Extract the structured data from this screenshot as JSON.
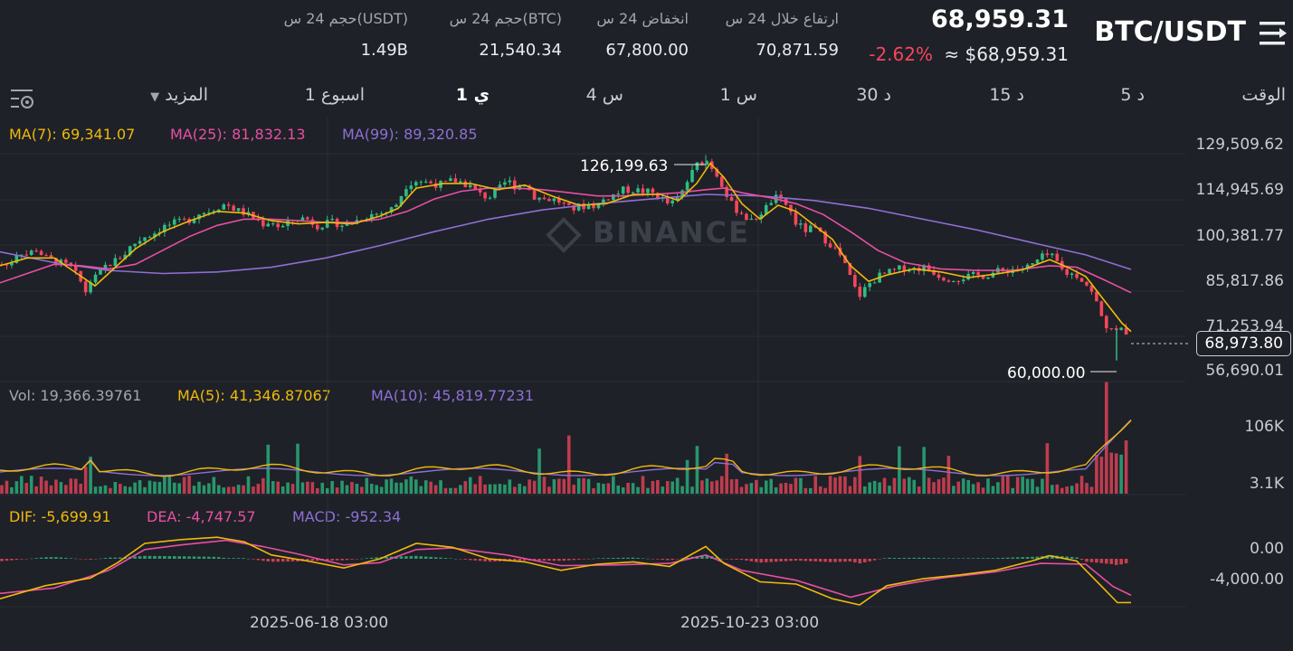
{
  "header": {
    "pair": "BTC/USDT",
    "price": "68,959.31",
    "price_usd": "≈ $68,959.31",
    "change": "-2.62%",
    "stats": [
      {
        "label": "ارتفاع خلال 24 س",
        "value": "70,871.59"
      },
      {
        "label": "انخفاض 24 س",
        "value": "67,800.00"
      },
      {
        "label": "حجم 24 س(BTC)",
        "value": "21,540.34"
      },
      {
        "label": "حجم 24 س(USDT)",
        "value": "1.49B"
      }
    ]
  },
  "timeframes": {
    "label": "الوقت",
    "items": [
      "5 د",
      "15 د",
      "30 د",
      "1 س",
      "4 س",
      "1 ي",
      "1 اسبوع"
    ],
    "active": "1 ي",
    "more": "المزيد"
  },
  "icons": {
    "menu": "menu-icon",
    "settings": "chart-settings-icon",
    "dropdown": "caret-down-icon"
  },
  "main_chart": {
    "ma7": "MA(7): 69,341.07",
    "ma25": "MA(25): 81,832.13",
    "ma99": "MA(99): 89,320.85",
    "yaxis": [
      "129,509.62",
      "114,945.69",
      "100,381.77",
      "85,817.86",
      "71,253.94",
      "56,690.01"
    ],
    "high_label": "126,199.63",
    "low_label": "60,000.00",
    "last_price": "68,973.80",
    "watermark": "BINANCE"
  },
  "volume_chart": {
    "vol": "Vol: 19,366.39761",
    "ma5": "MA(5): 41,346.87067",
    "ma10": "MA(10): 45,819.77231",
    "yaxis": [
      "106K",
      "3.1K"
    ]
  },
  "macd_chart": {
    "dif": "DIF: -5,699.91",
    "dea": "DEA: -4,747.57",
    "macd": "MACD: -952.34",
    "yaxis": [
      "0.00",
      "-4,000.00"
    ]
  },
  "xaxis": [
    "2025-06-18 03:00",
    "2025-10-23 03:00"
  ],
  "colors": {
    "up": "#2ebd85",
    "down": "#f6465d",
    "ma7": "#f0b90b",
    "ma25": "#e84fa3",
    "ma99": "#8e6fd6",
    "bg": "#1e2127"
  },
  "chart_data": {
    "type": "candlestick",
    "price_points": [
      [
        0,
        91000
      ],
      [
        10,
        90500
      ],
      [
        20,
        95500
      ],
      [
        30,
        94000
      ],
      [
        40,
        96000
      ],
      [
        50,
        93000
      ],
      [
        60,
        92000
      ],
      [
        70,
        91000
      ],
      [
        80,
        89500
      ],
      [
        85,
        87000
      ],
      [
        90,
        85000
      ],
      [
        95,
        82000
      ],
      [
        100,
        85500
      ],
      [
        105,
        86500
      ],
      [
        110,
        88000
      ],
      [
        115,
        90000
      ],
      [
        120,
        91000
      ],
      [
        130,
        92500
      ],
      [
        140,
        95000
      ],
      [
        145,
        97000
      ],
      [
        150,
        98000
      ],
      [
        160,
        100000
      ],
      [
        170,
        101000
      ],
      [
        180,
        103000
      ],
      [
        190,
        104000
      ],
      [
        200,
        104500
      ],
      [
        210,
        105500
      ],
      [
        220,
        107500
      ],
      [
        230,
        108000
      ],
      [
        240,
        109500
      ],
      [
        250,
        110500
      ],
      [
        260,
        108500
      ],
      [
        270,
        107500
      ],
      [
        280,
        106000
      ],
      [
        290,
        104000
      ],
      [
        300,
        105000
      ],
      [
        310,
        102500
      ],
      [
        320,
        104500
      ],
      [
        330,
        106000
      ],
      [
        340,
        105500
      ],
      [
        350,
        103500
      ],
      [
        360,
        104000
      ],
      [
        370,
        104500
      ],
      [
        380,
        103500
      ],
      [
        390,
        104500
      ],
      [
        400,
        106000
      ],
      [
        410,
        107000
      ],
      [
        420,
        107500
      ],
      [
        430,
        108000
      ],
      [
        440,
        111000
      ],
      [
        445,
        114500
      ],
      [
        450,
        117000
      ],
      [
        460,
        118000
      ],
      [
        470,
        117500
      ],
      [
        480,
        117000
      ],
      [
        490,
        116500
      ],
      [
        500,
        118000
      ],
      [
        510,
        117500
      ],
      [
        520,
        116000
      ],
      [
        530,
        113500
      ],
      [
        540,
        112500
      ],
      [
        550,
        114500
      ],
      [
        560,
        118000
      ],
      [
        570,
        116000
      ],
      [
        580,
        117000
      ],
      [
        590,
        113000
      ],
      [
        600,
        112000
      ],
      [
        610,
        112000
      ],
      [
        620,
        111000
      ],
      [
        630,
        108500
      ],
      [
        640,
        109500
      ],
      [
        650,
        110000
      ],
      [
        660,
        110000
      ],
      [
        670,
        112500
      ],
      [
        680,
        113500
      ],
      [
        690,
        115000
      ],
      [
        700,
        115000
      ],
      [
        710,
        114500
      ],
      [
        720,
        114000
      ],
      [
        730,
        112500
      ],
      [
        740,
        110000
      ],
      [
        750,
        112000
      ],
      [
        760,
        118000
      ],
      [
        770,
        123000
      ],
      [
        778,
        124500
      ],
      [
        783,
        124000
      ],
      [
        790,
        121000
      ],
      [
        800,
        116000
      ],
      [
        805,
        112000
      ],
      [
        810,
        109500
      ],
      [
        820,
        107500
      ],
      [
        830,
        104500
      ],
      [
        840,
        107500
      ],
      [
        850,
        110000
      ],
      [
        855,
        113000
      ],
      [
        860,
        111500
      ],
      [
        870,
        110000
      ],
      [
        880,
        104000
      ],
      [
        890,
        102000
      ],
      [
        900,
        102500
      ],
      [
        910,
        99500
      ],
      [
        920,
        97000
      ],
      [
        930,
        93000
      ],
      [
        940,
        86500
      ],
      [
        945,
        83000
      ],
      [
        950,
        81000
      ],
      [
        960,
        84500
      ],
      [
        970,
        87000
      ],
      [
        980,
        88000
      ],
      [
        990,
        89000
      ],
      [
        1000,
        90000
      ],
      [
        1010,
        89500
      ],
      [
        1020,
        90000
      ],
      [
        1030,
        89000
      ],
      [
        1040,
        87000
      ],
      [
        1050,
        86500
      ],
      [
        1060,
        86700
      ],
      [
        1070,
        87000
      ],
      [
        1080,
        87300
      ],
      [
        1090,
        87500
      ],
      [
        1100,
        88500
      ],
      [
        1110,
        89000
      ],
      [
        1120,
        89500
      ],
      [
        1130,
        89500
      ],
      [
        1140,
        90500
      ],
      [
        1150,
        93000
      ],
      [
        1160,
        94000
      ],
      [
        1170,
        91000
      ],
      [
        1175,
        88500
      ],
      [
        1180,
        88000
      ],
      [
        1190,
        87500
      ],
      [
        1200,
        85000
      ],
      [
        1210,
        80000
      ],
      [
        1215,
        76000
      ],
      [
        1220,
        72000
      ],
      [
        1225,
        70500
      ],
      [
        1230,
        69500
      ],
      [
        1235,
        69000
      ],
      [
        1240,
        69800
      ],
      [
        1245,
        68973
      ]
    ],
    "high": 126199.63,
    "low": 60000.0,
    "last": 68973.8,
    "ma7": [
      [
        0,
        90500
      ],
      [
        30,
        93000
      ],
      [
        60,
        93000
      ],
      [
        90,
        87000
      ],
      [
        105,
        84000
      ],
      [
        120,
        88000
      ],
      [
        150,
        96000
      ],
      [
        180,
        101500
      ],
      [
        210,
        105000
      ],
      [
        240,
        108000
      ],
      [
        270,
        107500
      ],
      [
        300,
        105000
      ],
      [
        330,
        104000
      ],
      [
        360,
        104500
      ],
      [
        390,
        104000
      ],
      [
        420,
        106500
      ],
      [
        440,
        109000
      ],
      [
        460,
        115500
      ],
      [
        490,
        117000
      ],
      [
        520,
        117000
      ],
      [
        550,
        115000
      ],
      [
        580,
        116500
      ],
      [
        610,
        113000
      ],
      [
        640,
        110000
      ],
      [
        670,
        110500
      ],
      [
        700,
        113500
      ],
      [
        730,
        113500
      ],
      [
        750,
        111500
      ],
      [
        770,
        117000
      ],
      [
        785,
        123500
      ],
      [
        800,
        119000
      ],
      [
        820,
        110500
      ],
      [
        840,
        105500
      ],
      [
        860,
        110000
      ],
      [
        880,
        108000
      ],
      [
        900,
        103500
      ],
      [
        920,
        99000
      ],
      [
        940,
        90500
      ],
      [
        960,
        85500
      ],
      [
        980,
        87500
      ],
      [
        1010,
        89500
      ],
      [
        1040,
        88500
      ],
      [
        1070,
        86700
      ],
      [
        1100,
        87800
      ],
      [
        1130,
        89200
      ],
      [
        1160,
        92500
      ],
      [
        1180,
        90000
      ],
      [
        1200,
        87000
      ],
      [
        1220,
        79500
      ],
      [
        1240,
        72000
      ],
      [
        1250,
        69341
      ]
    ],
    "ma25": [
      [
        0,
        85000
      ],
      [
        30,
        88000
      ],
      [
        60,
        91000
      ],
      [
        90,
        90500
      ],
      [
        120,
        89500
      ],
      [
        150,
        91000
      ],
      [
        180,
        95500
      ],
      [
        210,
        100000
      ],
      [
        240,
        103500
      ],
      [
        270,
        105500
      ],
      [
        300,
        105500
      ],
      [
        330,
        105000
      ],
      [
        360,
        104500
      ],
      [
        390,
        104500
      ],
      [
        420,
        105500
      ],
      [
        450,
        108000
      ],
      [
        480,
        112000
      ],
      [
        510,
        114500
      ],
      [
        540,
        115500
      ],
      [
        570,
        115500
      ],
      [
        600,
        115000
      ],
      [
        630,
        114000
      ],
      [
        660,
        113000
      ],
      [
        690,
        113000
      ],
      [
        720,
        113500
      ],
      [
        750,
        114000
      ],
      [
        780,
        115000
      ],
      [
        800,
        115500
      ],
      [
        820,
        114000
      ],
      [
        850,
        112500
      ],
      [
        880,
        110500
      ],
      [
        910,
        107000
      ],
      [
        940,
        101500
      ],
      [
        970,
        95500
      ],
      [
        1000,
        91500
      ],
      [
        1040,
        89500
      ],
      [
        1080,
        89000
      ],
      [
        1120,
        89000
      ],
      [
        1160,
        90500
      ],
      [
        1190,
        90000
      ],
      [
        1220,
        86000
      ],
      [
        1250,
        81832
      ]
    ],
    "ma99": [
      [
        0,
        95000
      ],
      [
        60,
        91500
      ],
      [
        120,
        89000
      ],
      [
        180,
        88000
      ],
      [
        240,
        88500
      ],
      [
        300,
        90000
      ],
      [
        360,
        93000
      ],
      [
        420,
        97000
      ],
      [
        480,
        101500
      ],
      [
        540,
        105500
      ],
      [
        600,
        108500
      ],
      [
        660,
        110500
      ],
      [
        720,
        112000
      ],
      [
        780,
        113500
      ],
      [
        840,
        113000
      ],
      [
        900,
        111500
      ],
      [
        960,
        109000
      ],
      [
        1020,
        105500
      ],
      [
        1080,
        102000
      ],
      [
        1140,
        98000
      ],
      [
        1200,
        94000
      ],
      [
        1250,
        89320
      ]
    ],
    "dif": [
      [
        0,
        -5200
      ],
      [
        50,
        -3500
      ],
      [
        100,
        -2500
      ],
      [
        130,
        -500
      ],
      [
        160,
        2000
      ],
      [
        200,
        2500
      ],
      [
        240,
        2800
      ],
      [
        270,
        2200
      ],
      [
        300,
        500
      ],
      [
        340,
        -300
      ],
      [
        380,
        -1200
      ],
      [
        420,
        0
      ],
      [
        460,
        2000
      ],
      [
        500,
        1500
      ],
      [
        540,
        0
      ],
      [
        580,
        -400
      ],
      [
        620,
        -1500
      ],
      [
        660,
        -700
      ],
      [
        700,
        -400
      ],
      [
        740,
        -1000
      ],
      [
        780,
        1600
      ],
      [
        800,
        -600
      ],
      [
        840,
        -3000
      ],
      [
        880,
        -3300
      ],
      [
        920,
        -5200
      ],
      [
        950,
        -6000
      ],
      [
        980,
        -3500
      ],
      [
        1020,
        -2600
      ],
      [
        1060,
        -2100
      ],
      [
        1100,
        -1500
      ],
      [
        1140,
        -300
      ],
      [
        1160,
        400
      ],
      [
        1190,
        -300
      ],
      [
        1220,
        -3900
      ],
      [
        1235,
        -5700
      ],
      [
        1250,
        -5699.91
      ]
    ],
    "dea": [
      [
        0,
        -4500
      ],
      [
        60,
        -3800
      ],
      [
        120,
        -1500
      ],
      [
        160,
        1200
      ],
      [
        200,
        1800
      ],
      [
        250,
        2400
      ],
      [
        290,
        1600
      ],
      [
        330,
        600
      ],
      [
        380,
        -800
      ],
      [
        420,
        -500
      ],
      [
        460,
        1200
      ],
      [
        500,
        1400
      ],
      [
        560,
        500
      ],
      [
        620,
        -900
      ],
      [
        680,
        -800
      ],
      [
        740,
        -600
      ],
      [
        780,
        500
      ],
      [
        820,
        -1500
      ],
      [
        880,
        -2800
      ],
      [
        940,
        -5000
      ],
      [
        990,
        -3500
      ],
      [
        1040,
        -2500
      ],
      [
        1100,
        -1700
      ],
      [
        1150,
        -600
      ],
      [
        1200,
        -700
      ],
      [
        1230,
        -3600
      ],
      [
        1250,
        -4747.57
      ]
    ],
    "macd_hist": -952.34
  }
}
